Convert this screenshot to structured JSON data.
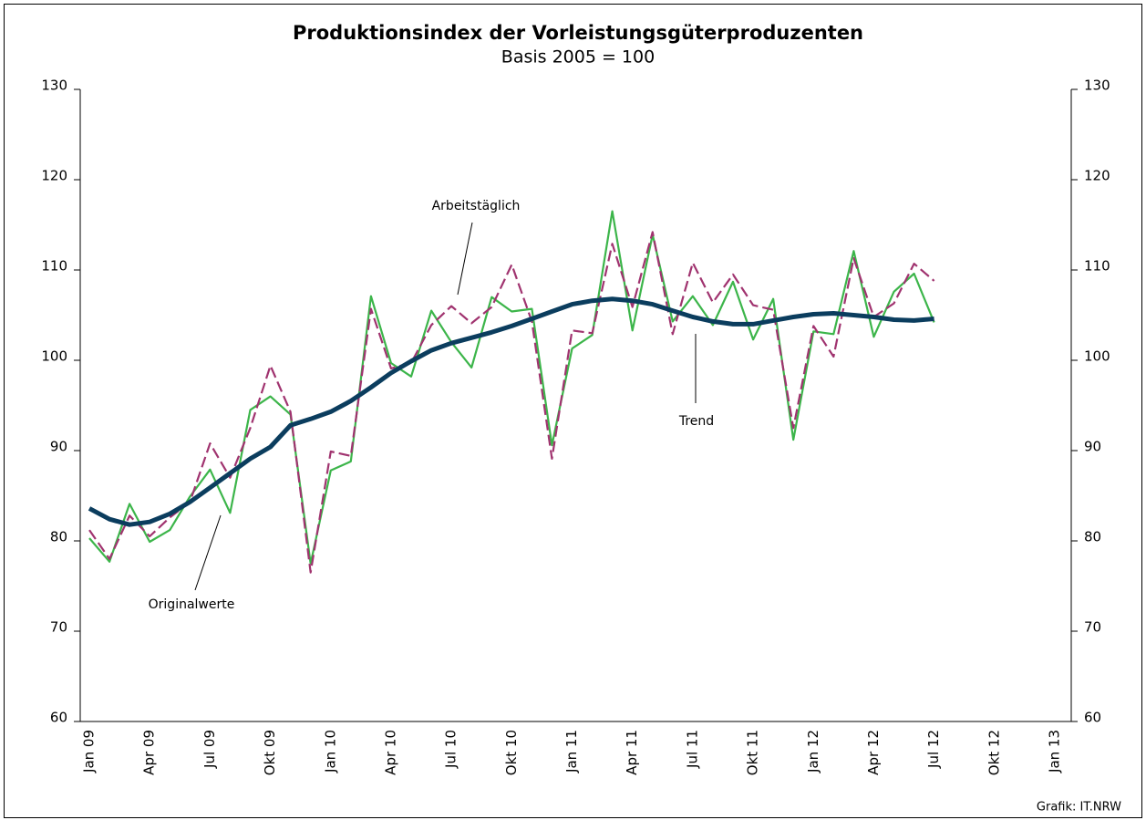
{
  "chart_data": {
    "type": "line",
    "title": "Produktionsindex der Vorleistungsgüterproduzenten",
    "subtitle": "Basis 2005 = 100",
    "source": "Grafik: IT.NRW",
    "categories": [
      "Jan 09",
      null,
      null,
      "Apr 09",
      null,
      null,
      "Jul 09",
      null,
      null,
      "Okt 09",
      null,
      null,
      "Jan 10",
      null,
      null,
      "Apr 10",
      null,
      null,
      "Jul 10",
      null,
      null,
      "Okt 10",
      null,
      null,
      "Jan 11",
      null,
      null,
      "Apr 11",
      null,
      null,
      "Jul 11",
      null,
      null,
      "Okt 11",
      null,
      null,
      "Jan 12",
      null,
      null,
      "Apr 12",
      null,
      null,
      "Jul 12",
      null,
      null,
      "Okt 12",
      null,
      null,
      "Jan 13"
    ],
    "series": [
      {
        "name": "Originalwerte",
        "color": "#3cb54a",
        "dash": false,
        "width": 2.2,
        "values": [
          80.3,
          77.7,
          84.1,
          79.9,
          81.2,
          84.9,
          87.9,
          83.1,
          94.5,
          96.0,
          94.0,
          77.5,
          87.8,
          88.8,
          107.1,
          99.7,
          98.2,
          105.5,
          102.0,
          99.2,
          107.0,
          105.4,
          105.7,
          90.6,
          101.3,
          102.8,
          116.5,
          103.3,
          113.9,
          104.3,
          107.1,
          103.9,
          108.7,
          102.3,
          106.8,
          91.2,
          103.2,
          102.9,
          112.1,
          102.6,
          107.6,
          109.6,
          104.2,
          null,
          null,
          null,
          null,
          null,
          null
        ]
      },
      {
        "name": "Arbeitstäglich",
        "color": "#a0336f",
        "dash": true,
        "width": 2.2,
        "values": [
          81.2,
          78.0,
          82.8,
          80.5,
          82.6,
          84.3,
          90.8,
          87.0,
          92.5,
          99.4,
          94.3,
          76.5,
          89.9,
          89.4,
          105.7,
          99.1,
          99.7,
          103.9,
          106.0,
          104.1,
          105.9,
          110.6,
          104.3,
          89.1,
          103.3,
          103.0,
          112.9,
          105.9,
          114.2,
          102.9,
          110.8,
          106.4,
          109.5,
          106.1,
          105.6,
          92.5,
          103.8,
          100.4,
          111.3,
          104.8,
          106.3,
          110.7,
          108.8,
          null,
          null,
          null,
          null,
          null,
          null
        ]
      },
      {
        "name": "Trend",
        "color": "#0b3d5e",
        "dash": false,
        "width": 5,
        "values": [
          83.6,
          82.4,
          81.8,
          82.1,
          83.0,
          84.3,
          85.9,
          87.5,
          89.1,
          90.4,
          92.8,
          93.5,
          94.3,
          95.5,
          97.0,
          98.6,
          99.9,
          101.1,
          101.9,
          102.5,
          103.1,
          103.8,
          104.6,
          105.4,
          106.2,
          106.6,
          106.8,
          106.6,
          106.2,
          105.5,
          104.8,
          104.3,
          104.0,
          104.0,
          104.4,
          104.8,
          105.1,
          105.2,
          105.0,
          104.8,
          104.5,
          104.4,
          104.6,
          null,
          null,
          null,
          null,
          null,
          null
        ]
      }
    ],
    "ylim": [
      60,
      130
    ],
    "yticks": [
      60,
      70,
      80,
      90,
      100,
      110,
      120,
      130
    ],
    "y2lim": [
      60,
      130
    ],
    "y2ticks": [
      60,
      70,
      80,
      90,
      100,
      110,
      120,
      130
    ],
    "grid": false
  }
}
